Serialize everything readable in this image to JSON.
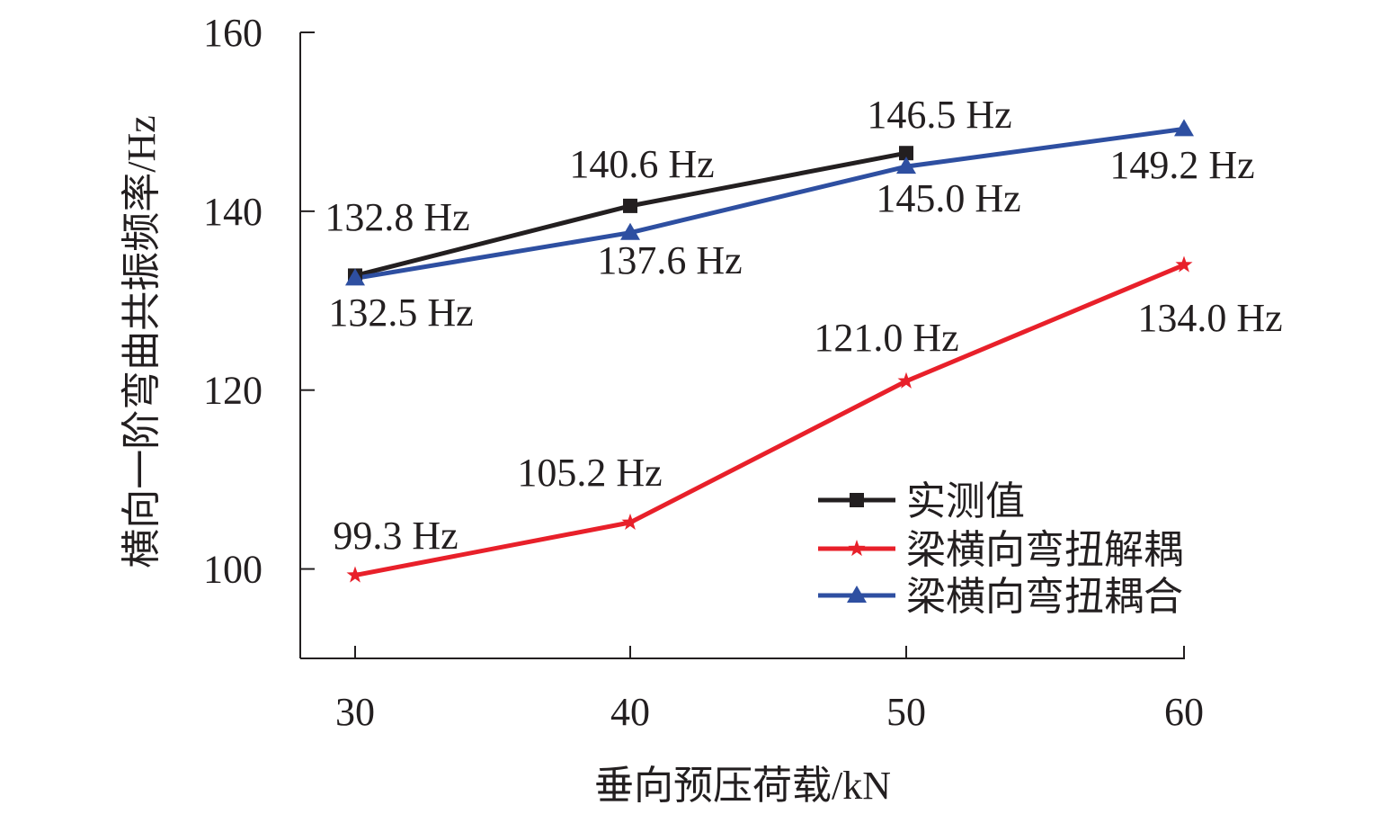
{
  "chart_data": {
    "type": "line",
    "xlabel": "垂向预压荷载/kN",
    "ylabel": "横向一阶弯曲共振频率/Hz",
    "x": [
      30,
      40,
      50,
      60
    ],
    "x_tick_labels": [
      "30",
      "40",
      "50",
      "60"
    ],
    "ylim": [
      90,
      160
    ],
    "y_ticks": [
      100,
      120,
      140,
      160
    ],
    "y_tick_labels": [
      "100",
      "120",
      "140",
      "160"
    ],
    "grid": false,
    "legend_position": "lower-right",
    "series": [
      {
        "name": "实测值",
        "color": "#231f20",
        "marker": "square",
        "x": [
          30,
          40,
          50
        ],
        "values": [
          132.8,
          140.6,
          146.5
        ],
        "labels": [
          "132.8 Hz",
          "140.6 Hz",
          "146.5 Hz"
        ]
      },
      {
        "name": "梁横向弯扭解耦",
        "color": "#e8202a",
        "marker": "star",
        "x": [
          30,
          40,
          50,
          60
        ],
        "values": [
          99.3,
          105.2,
          121.0,
          134.0
        ],
        "labels": [
          "99.3 Hz",
          "105.2 Hz",
          "121.0 Hz",
          "134.0 Hz"
        ]
      },
      {
        "name": "梁横向弯扭耦合",
        "color": "#2e4fa1",
        "marker": "triangle",
        "x": [
          30,
          40,
          50,
          60
        ],
        "values": [
          132.5,
          137.6,
          145.0,
          149.2
        ],
        "labels": [
          "132.5 Hz",
          "137.6 Hz",
          "145.0 Hz",
          "149.2 Hz"
        ]
      }
    ]
  }
}
